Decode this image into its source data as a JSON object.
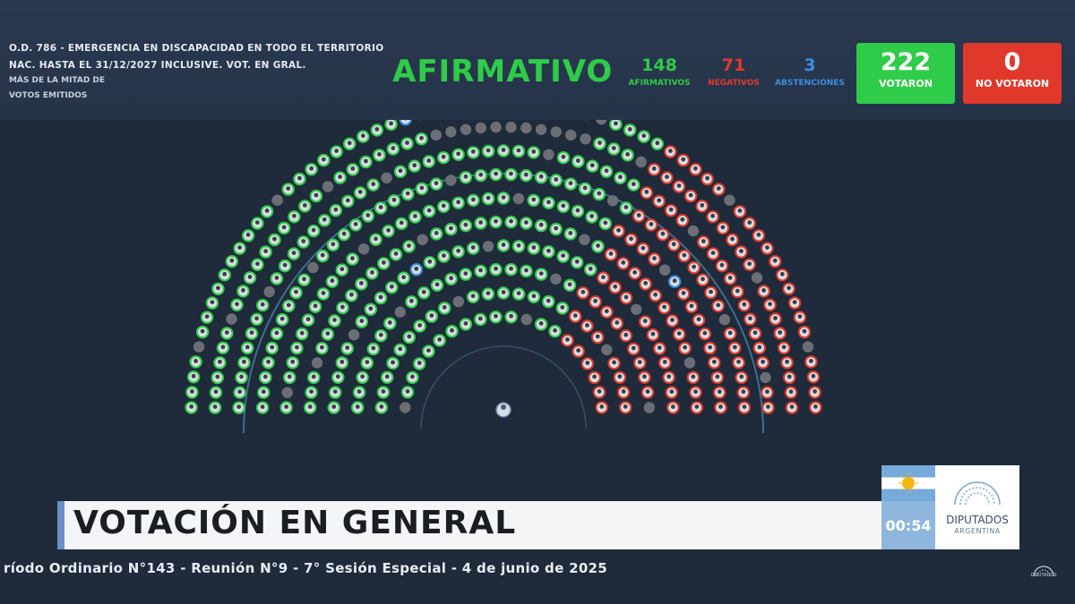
{
  "motion": {
    "line1": "O.D. 786 - EMERGENCIA EN DISCAPACIDAD EN TODO EL TERRITORIO",
    "line2": "NAC. HASTA EL 31/12/2027 INCLUSIVE. VOT. EN GRAL.",
    "majority_line1": "MÁS DE LA MITAD DE",
    "majority_line2": "VOTOS EMITIDOS"
  },
  "result": "AFIRMATIVO",
  "counts": {
    "afirmativos": {
      "value": "148",
      "label": "AFIRMATIVOS",
      "color": "#2ecc48"
    },
    "negativos": {
      "value": "71",
      "label": "NEGATIVOS",
      "color": "#e0392b"
    },
    "abstenciones": {
      "value": "3",
      "label": "ABSTENCIONES",
      "color": "#3b8fe0"
    }
  },
  "votaron": {
    "value": "222",
    "label": "VOTARON",
    "color": "#2ecc48"
  },
  "no_votaron": {
    "value": "0",
    "label": "NO VOTARON",
    "color": "#e0392b"
  },
  "seat_colors": {
    "afirmativo": "#2ecc48",
    "negativo": "#e0392b",
    "abstencion": "#3b8fe0",
    "ausente": "#6b6f75"
  },
  "title": "VOTACIÓN EN GENERAL",
  "timer": "00:54",
  "logo": {
    "name": "DIPUTADOS",
    "country": "ARGENTINA"
  },
  "session": "ríodo Ordinario N°143 - Reunión N°9 - 7° Sesión Especial - 4 de junio de 2025",
  "corner_logo": {
    "name": "DIPUTADOS",
    "country": "ARGENTINA"
  }
}
